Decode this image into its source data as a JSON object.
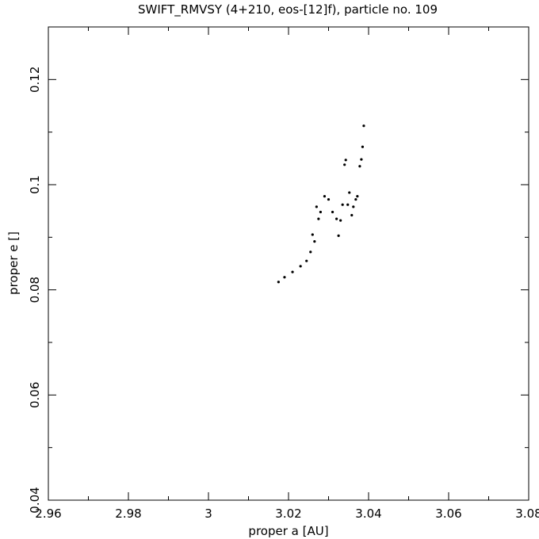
{
  "chart_data": {
    "type": "scatter",
    "title": "SWIFT_RMVSY (4+210, eos-[12]f), particle no. 109",
    "xlabel": "proper a [AU]",
    "ylabel": "proper e []",
    "xlim": [
      2.96,
      3.08
    ],
    "ylim": [
      0.04,
      0.13
    ],
    "xticks": [
      2.96,
      2.98,
      3.0,
      3.02,
      3.04,
      3.06,
      3.08
    ],
    "xtick_labels": [
      "2.96",
      "2.98",
      "3",
      "3.02",
      "3.04",
      "3.06",
      "3.08"
    ],
    "yticks": [
      0.04,
      0.06,
      0.08,
      0.1,
      0.12
    ],
    "ytick_labels": [
      "0.04",
      "0.06",
      "0.08",
      "0.1",
      "0.12"
    ],
    "grid": false,
    "color": "#000000",
    "series": [
      {
        "x": [
          3.0175,
          3.019,
          3.021,
          3.023,
          3.0245,
          3.0255,
          3.026,
          3.0265,
          3.027,
          3.0275,
          3.028,
          3.029,
          3.03,
          3.031,
          3.032,
          3.0325,
          3.033,
          3.0335,
          3.034,
          3.0343,
          3.0348,
          3.0352,
          3.0358,
          3.0362,
          3.0368,
          3.0372,
          3.0378,
          3.0382,
          3.0385,
          3.0388
        ],
        "y": [
          0.0815,
          0.0824,
          0.0834,
          0.0845,
          0.0855,
          0.0872,
          0.0905,
          0.0892,
          0.0958,
          0.0935,
          0.0948,
          0.0978,
          0.0972,
          0.0948,
          0.0935,
          0.0903,
          0.0932,
          0.0962,
          0.1038,
          0.1047,
          0.0962,
          0.0985,
          0.0942,
          0.0958,
          0.0972,
          0.0978,
          0.1035,
          0.1048,
          0.1072,
          0.1112
        ]
      }
    ]
  }
}
